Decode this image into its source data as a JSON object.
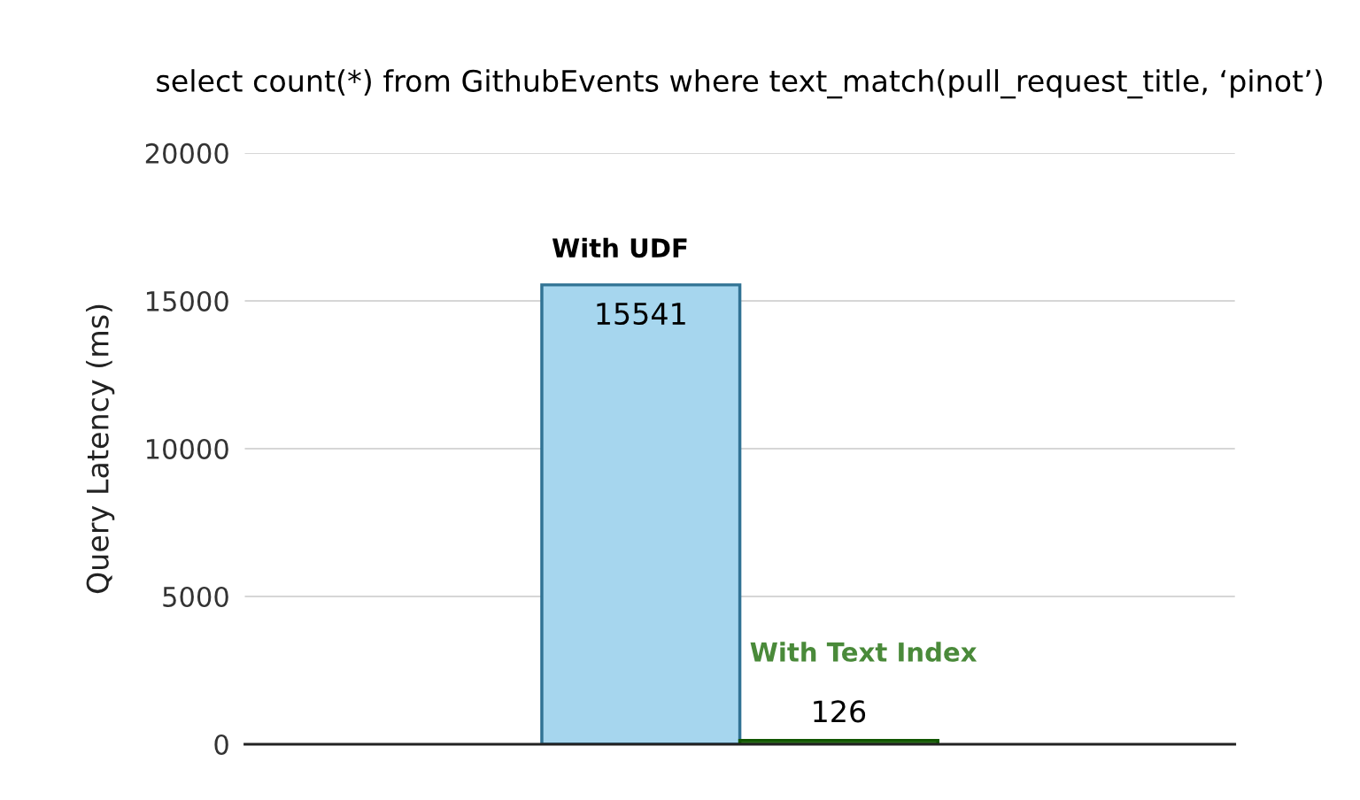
{
  "chart_data": {
    "type": "bar",
    "title": "select count(*) from GithubEvents where text_match(pull_request_title, ‘pinot’)",
    "ylabel": "Query Latency (ms)",
    "categories": [
      null
    ],
    "series": [
      {
        "name": "With UDF",
        "color": "#a6d6ee",
        "values": [
          15541
        ]
      },
      {
        "name": "With Text Index",
        "color": "#4a8a3a",
        "values": [
          126
        ]
      }
    ],
    "ylim": [
      0,
      20000
    ],
    "yticks": [
      0,
      5000,
      10000,
      15000,
      20000
    ],
    "grid": "y",
    "tick_labels": "y",
    "data_labels": true
  }
}
